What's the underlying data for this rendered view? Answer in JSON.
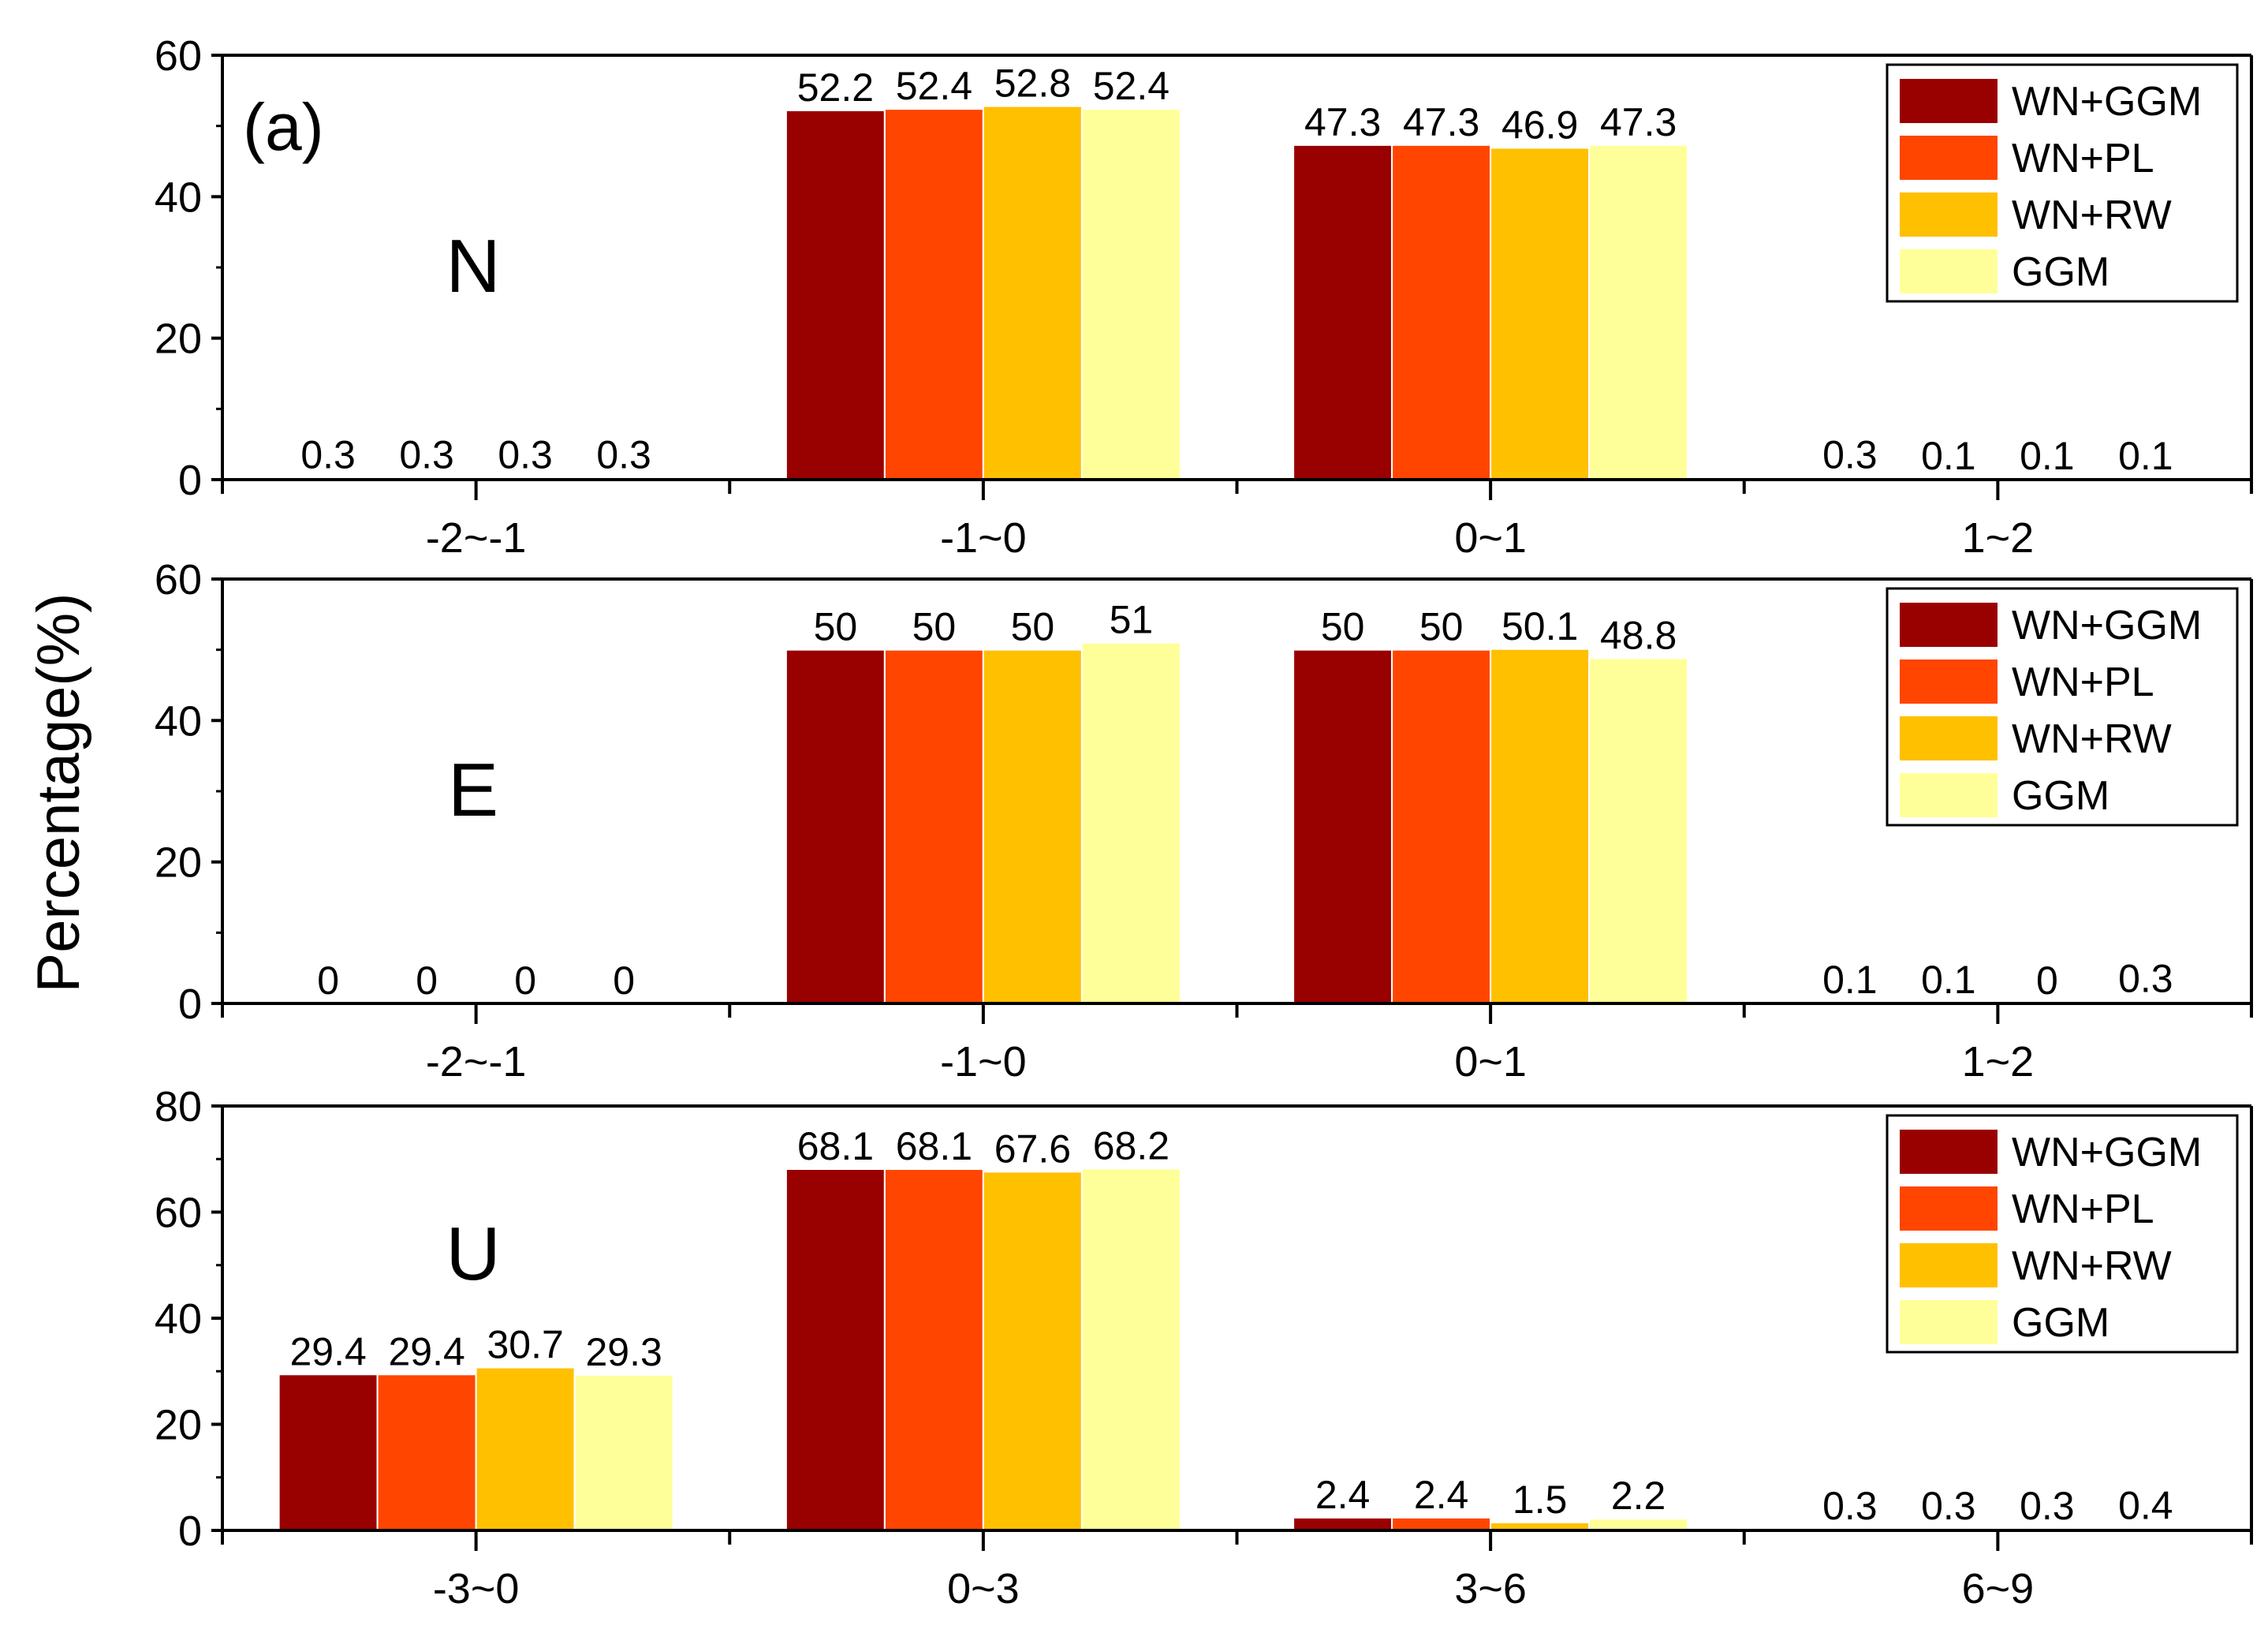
{
  "figure": {
    "ylabel": "Percentage(%)",
    "series_colors": {
      "WN+GGM": "#990000",
      "WN+PL": "#ff4500",
      "WN+RW": "#ffc000",
      "GGM": "#ffff99"
    }
  },
  "chart_data": [
    {
      "type": "bar",
      "panel_label": "(a)",
      "component": "N",
      "categories": [
        "-2~-1",
        "-1~0",
        "0~1",
        "1~2"
      ],
      "series": [
        {
          "name": "WN+GGM",
          "values": [
            0.3,
            52.2,
            47.3,
            0.3
          ]
        },
        {
          "name": "WN+PL",
          "values": [
            0.3,
            52.4,
            47.3,
            0.1
          ]
        },
        {
          "name": "WN+RW",
          "values": [
            0.3,
            52.8,
            46.9,
            0.1
          ]
        },
        {
          "name": "GGM",
          "values": [
            0.3,
            52.4,
            47.3,
            0.1
          ]
        }
      ],
      "data_labels": [
        [
          "0.3",
          "52.2",
          "47.3",
          "0.3"
        ],
        [
          "0.3",
          "52.4",
          "47.3",
          "0.1"
        ],
        [
          "0.3",
          "52.8",
          "46.9",
          "0.1"
        ],
        [
          "0.3",
          "52.4",
          "47.3",
          "0.1"
        ]
      ],
      "yticks": [
        "0",
        "20",
        "40",
        "60"
      ],
      "ylim": [
        0,
        60
      ],
      "legend": [
        "WN+GGM",
        "WN+PL",
        "WN+RW",
        "GGM"
      ],
      "legend_position": "top-right"
    },
    {
      "type": "bar",
      "component": "E",
      "categories": [
        "-2~-1",
        "-1~0",
        "0~1",
        "1~2"
      ],
      "series": [
        {
          "name": "WN+GGM",
          "values": [
            0,
            50,
            50,
            0.1
          ]
        },
        {
          "name": "WN+PL",
          "values": [
            0,
            50,
            50,
            0.1
          ]
        },
        {
          "name": "WN+RW",
          "values": [
            0,
            50,
            50.1,
            0
          ]
        },
        {
          "name": "GGM",
          "values": [
            0,
            51,
            48.8,
            0.3
          ]
        }
      ],
      "data_labels": [
        [
          "0",
          "50",
          "50",
          "0.1"
        ],
        [
          "0",
          "50",
          "50",
          "0.1"
        ],
        [
          "0",
          "50",
          "50.1",
          "0"
        ],
        [
          "0",
          "51",
          "48.8",
          "0.3"
        ]
      ],
      "yticks": [
        "0",
        "20",
        "40",
        "60"
      ],
      "ylim": [
        0,
        60
      ],
      "legend": [
        "WN+GGM",
        "WN+PL",
        "WN+RW",
        "GGM"
      ],
      "legend_position": "top-right"
    },
    {
      "type": "bar",
      "component": "U",
      "categories": [
        "-3~0",
        "0~3",
        "3~6",
        "6~9"
      ],
      "series": [
        {
          "name": "WN+GGM",
          "values": [
            29.4,
            68.1,
            2.4,
            0.3
          ]
        },
        {
          "name": "WN+PL",
          "values": [
            29.4,
            68.1,
            2.4,
            0.3
          ]
        },
        {
          "name": "WN+RW",
          "values": [
            30.7,
            67.6,
            1.5,
            0.3
          ]
        },
        {
          "name": "GGM",
          "values": [
            29.3,
            68.2,
            2.2,
            0.4
          ]
        }
      ],
      "data_labels": [
        [
          "29.4",
          "68.1",
          "2.4",
          "0.3"
        ],
        [
          "29.4",
          "68.1",
          "2.4",
          "0.3"
        ],
        [
          "30.7",
          "67.6",
          "1.5",
          "0.3"
        ],
        [
          "29.3",
          "68.2",
          "2.2",
          "0.4"
        ]
      ],
      "yticks": [
        "0",
        "20",
        "40",
        "60",
        "80"
      ],
      "ylim": [
        0,
        80
      ],
      "legend": [
        "WN+GGM",
        "WN+PL",
        "WN+RW",
        "GGM"
      ],
      "legend_position": "top-right"
    }
  ]
}
